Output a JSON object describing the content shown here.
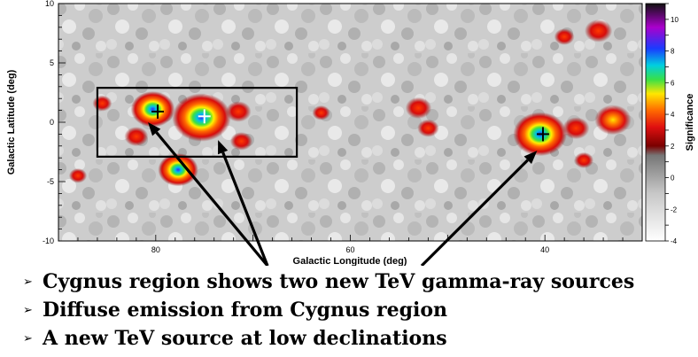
{
  "chart_data": {
    "type": "heatmap",
    "xlabel": "Galactic Longitude (deg)",
    "ylabel": "Galactic Latitude (deg)",
    "colorbar_label": "Significance",
    "xlim": [
      90,
      30
    ],
    "ylim": [
      -10,
      10
    ],
    "x_ticks": [
      "80",
      "60",
      "40"
    ],
    "y_ticks": [
      "10",
      "5",
      "0",
      "-5",
      "-10"
    ],
    "colorbar_range": [
      -4,
      11
    ],
    "colorbar_ticks": [
      "10",
      "8",
      "6",
      "4",
      "2",
      "0",
      "-2",
      "-4"
    ],
    "sources": [
      {
        "l": 79.8,
        "b": 0.9,
        "peak_significance": 7.5
      },
      {
        "l": 75.0,
        "b": 0.5,
        "peak_significance": 9.5
      },
      {
        "l": 40.2,
        "b": -1.0,
        "peak_significance": 8.5
      }
    ],
    "hotspots": [
      {
        "l": 80.3,
        "b": 1.1,
        "sigma": 6.5
      },
      {
        "l": 75.3,
        "b": 0.4,
        "sigma": 8.5
      },
      {
        "l": 77.7,
        "b": -4.0,
        "sigma": 6.0
      },
      {
        "l": 82.0,
        "b": -1.2,
        "sigma": 3.8
      },
      {
        "l": 71.5,
        "b": 0.9,
        "sigma": 4.0
      },
      {
        "l": 71.2,
        "b": -1.6,
        "sigma": 3.6
      },
      {
        "l": 85.5,
        "b": 1.6,
        "sigma": 3.2
      },
      {
        "l": 53.0,
        "b": 1.2,
        "sigma": 4.1
      },
      {
        "l": 52.0,
        "b": -0.5,
        "sigma": 3.5
      },
      {
        "l": 40.5,
        "b": -1.0,
        "sigma": 7.8
      },
      {
        "l": 36.8,
        "b": -0.5,
        "sigma": 4.2
      },
      {
        "l": 33.0,
        "b": 0.2,
        "sigma": 5.5
      },
      {
        "l": 34.5,
        "b": 7.7,
        "sigma": 4.3
      },
      {
        "l": 38.0,
        "b": 7.2,
        "sigma": 3.3
      },
      {
        "l": 36.0,
        "b": -3.2,
        "sigma": 3.2
      },
      {
        "l": 88.0,
        "b": -4.5,
        "sigma": 3.0
      },
      {
        "l": 63.0,
        "b": 0.8,
        "sigma": 3.0
      }
    ],
    "annotation_box": {
      "l_range": [
        86.0,
        65.5
      ],
      "b_range": [
        -2.9,
        2.9
      ]
    },
    "arrows": [
      {
        "to_l": 80.8,
        "to_b": 0.0
      },
      {
        "to_l": 73.6,
        "to_b": -1.5
      },
      {
        "to_l": 40.8,
        "to_b": -2.4
      }
    ]
  },
  "bullets": [
    "Cygnus region shows two new TeV gamma-ray sources",
    "Diffuse emission from Cygnus region",
    "A new TeV source at low declinations"
  ],
  "bullet_marker": "➢"
}
